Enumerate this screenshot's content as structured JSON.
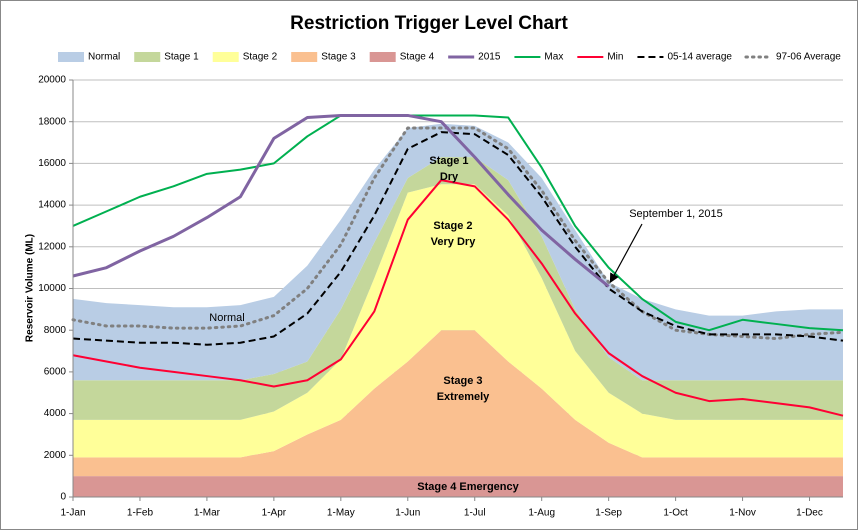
{
  "chart_data": {
    "type": "area",
    "title": "Restriction Trigger Level Chart",
    "y_label": "Reservoir Volume (ML)",
    "categories": [
      "1-Jan",
      null,
      "1-Feb",
      null,
      "1-Mar",
      null,
      "1-Apr",
      null,
      "1-May",
      null,
      "1-Jun",
      null,
      "1-Jul",
      null,
      "1-Aug",
      null,
      "1-Sep",
      null,
      "1-Oct",
      null,
      "1-Nov",
      null,
      "1-Dec",
      null
    ],
    "ylim": [
      0,
      20000
    ],
    "yticks": [
      0,
      2000,
      4000,
      6000,
      8000,
      10000,
      12000,
      14000,
      16000,
      18000,
      20000
    ],
    "grid": true,
    "legend": "top",
    "series": [
      {
        "name": "Normal",
        "type": "area",
        "color": "#b9cde5",
        "values": [
          3900,
          3700,
          3600,
          3500,
          3500,
          3600,
          3700,
          4600,
          4300,
          3500,
          2400,
          1600,
          1500,
          1800,
          2800,
          3800,
          3600,
          3900,
          3400,
          3100,
          3100,
          3300,
          3400,
          3400
        ]
      },
      {
        "name": "Stage 1",
        "type": "area",
        "color": "#c4d79b",
        "values": [
          1900,
          1900,
          1900,
          1900,
          1900,
          1900,
          1800,
          1500,
          2400,
          1700,
          700,
          1300,
          1300,
          1700,
          2000,
          2000,
          1700,
          1600,
          1900,
          1900,
          1900,
          1900,
          1900,
          1900
        ]
      },
      {
        "name": "Stage 2",
        "type": "area",
        "color": "#ffff99",
        "values": [
          1800,
          1800,
          1800,
          1800,
          1800,
          1800,
          1900,
          2000,
          2900,
          5300,
          8100,
          7000,
          7000,
          7000,
          5300,
          3300,
          2400,
          2100,
          1800,
          1800,
          1800,
          1800,
          1800,
          1800
        ]
      },
      {
        "name": "Stage 3",
        "type": "area",
        "color": "#fac090",
        "values": [
          900,
          900,
          900,
          900,
          900,
          900,
          1200,
          2000,
          2700,
          4200,
          5500,
          7000,
          7000,
          5500,
          4200,
          2700,
          1600,
          900,
          900,
          900,
          900,
          900,
          900,
          900
        ]
      },
      {
        "name": "Stage 4",
        "type": "area",
        "color": "#d99694",
        "values": [
          1000,
          1000,
          1000,
          1000,
          1000,
          1000,
          1000,
          1000,
          1000,
          1000,
          1000,
          1000,
          1000,
          1000,
          1000,
          1000,
          1000,
          1000,
          1000,
          1000,
          1000,
          1000,
          1000,
          1000
        ]
      },
      {
        "name": "2015",
        "type": "line",
        "color": "#8064a2",
        "dash": "solid",
        "width": 3,
        "values": [
          10600,
          11000,
          11800,
          12500,
          13400,
          14400,
          17200,
          18200,
          18300,
          18300,
          18300,
          18000,
          16300,
          14500,
          12800,
          11400,
          10100,
          null,
          null,
          null,
          null,
          null,
          null,
          null
        ]
      },
      {
        "name": "Max",
        "type": "line",
        "color": "#00b050",
        "dash": "solid",
        "width": 2,
        "values": [
          13000,
          13700,
          14400,
          14900,
          15500,
          15700,
          16000,
          17300,
          18300,
          18300,
          18300,
          18300,
          18300,
          18200,
          15800,
          13000,
          11000,
          9500,
          8400,
          8000,
          8500,
          8300,
          8100,
          8000
        ]
      },
      {
        "name": "Min",
        "type": "line",
        "color": "#ff0033",
        "dash": "solid",
        "width": 2,
        "values": [
          6800,
          6500,
          6200,
          6000,
          5800,
          5600,
          5300,
          5600,
          6600,
          8900,
          13300,
          15200,
          14900,
          13300,
          11200,
          8800,
          6900,
          5800,
          5000,
          4600,
          4700,
          4500,
          4300,
          3900
        ]
      },
      {
        "name": "05-14 average",
        "type": "line",
        "color": "#000000",
        "dash": "dashed",
        "width": 2,
        "values": [
          7600,
          7500,
          7400,
          7400,
          7300,
          7400,
          7700,
          8800,
          10800,
          13500,
          16700,
          17500,
          17400,
          16400,
          14400,
          12000,
          10000,
          8900,
          8200,
          7800,
          7800,
          7800,
          7700,
          7500
        ]
      },
      {
        "name": "97-06 Average",
        "type": "line",
        "color": "#808080",
        "dash": "dotted",
        "width": 3,
        "values": [
          8500,
          8200,
          8200,
          8100,
          8100,
          8200,
          8700,
          10000,
          12100,
          15300,
          17700,
          17700,
          17700,
          16700,
          14700,
          12300,
          10300,
          8900,
          8000,
          7800,
          7700,
          7600,
          7800,
          7900
        ]
      }
    ],
    "annotations": [
      "Normal",
      "Stage 1",
      "Dry",
      "Stage 2",
      "Very Dry",
      "Stage 3",
      "Extremely",
      "Stage 4 Emergency",
      "September 1, 2015"
    ]
  }
}
